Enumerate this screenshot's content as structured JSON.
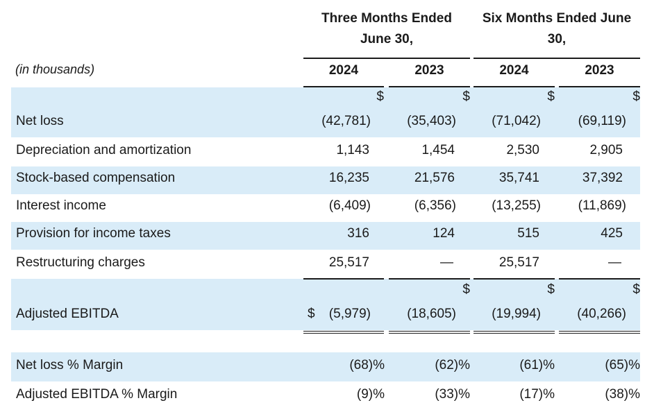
{
  "header": {
    "three_months": [
      "Three Months Ended",
      "June 30,"
    ],
    "six_months": [
      "Six Months Ended June",
      "30,"
    ],
    "units": "(in thousands)",
    "years": [
      "2024",
      "2023",
      "2024",
      "2023"
    ]
  },
  "dollar_sign": "$",
  "rows": [
    {
      "label": "Net loss",
      "values": [
        "(42,781)",
        "(35,403)",
        "(71,042)",
        "(69,119)"
      ]
    },
    {
      "label": "Depreciation and amortization",
      "values": [
        "1,143",
        "1,454",
        "2,530",
        "2,905"
      ]
    },
    {
      "label": "Stock-based compensation",
      "values": [
        "16,235",
        "21,576",
        "35,741",
        "37,392"
      ]
    },
    {
      "label": "Interest income",
      "values": [
        "(6,409)",
        "(6,356)",
        "(13,255)",
        "(11,869)"
      ]
    },
    {
      "label": "Provision for income taxes",
      "values": [
        "316",
        "124",
        "515",
        "425"
      ]
    },
    {
      "label": "Restructuring charges",
      "values": [
        "25,517",
        "—",
        "25,517",
        "—"
      ]
    }
  ],
  "adjusted": {
    "label": "Adjusted EBITDA",
    "values": [
      "(5,979)",
      "(18,605)",
      "(19,994)",
      "(40,266)"
    ]
  },
  "margins": [
    {
      "label": "Net loss % Margin",
      "values": [
        "(68)%",
        "(62)%",
        "(61)%",
        "(65)%"
      ]
    },
    {
      "label": "Adjusted EBITDA % Margin",
      "values": [
        "(9)%",
        "(33)%",
        "(17)%",
        "(38)%"
      ]
    }
  ]
}
